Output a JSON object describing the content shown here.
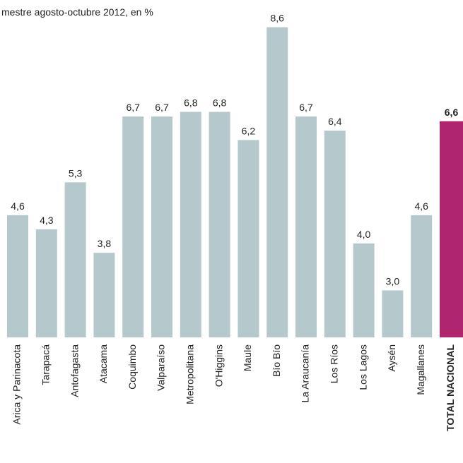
{
  "chart_data": {
    "type": "bar",
    "subtitle": "mestre agosto-octubre 2012, en %",
    "categories": [
      "Arica y Parinacota",
      "Tarapacá",
      "Antofagasta",
      "Atacama",
      "Coquimbo",
      "Valparaíso",
      "Metropolitana",
      "O'Higgins",
      "Maule",
      "Bío Bío",
      "La Araucanía",
      "Los Ríos",
      "Los Lagos",
      "Aysén",
      "Magallanes",
      "TOTAL NACIONAL"
    ],
    "values": [
      4.6,
      4.3,
      5.3,
      3.8,
      6.7,
      6.7,
      6.8,
      6.8,
      6.2,
      8.6,
      6.7,
      6.4,
      4.0,
      3.0,
      4.6,
      6.6
    ],
    "value_labels": [
      "4,6",
      "4,3",
      "5,3",
      "3,8",
      "6,7",
      "6,7",
      "6,8",
      "6,8",
      "6,2",
      "8,6",
      "6,7",
      "6,4",
      "4,0",
      "3,0",
      "4,6",
      "6,6"
    ],
    "colors": [
      "#b5c9cd",
      "#b5c9cd",
      "#b5c9cd",
      "#b5c9cd",
      "#b5c9cd",
      "#b5c9cd",
      "#b5c9cd",
      "#b5c9cd",
      "#b5c9cd",
      "#b5c9cd",
      "#b5c9cd",
      "#b5c9cd",
      "#b5c9cd",
      "#b5c9cd",
      "#b5c9cd",
      "#b0266e"
    ],
    "ylim": [
      2,
      9
    ]
  }
}
